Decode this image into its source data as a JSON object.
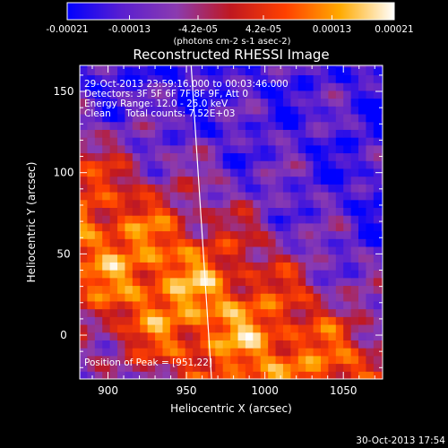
{
  "chart_data": {
    "type": "heatmap",
    "title": "Reconstructed RHESSI Image",
    "xlabel": "Heliocentric X (arcsec)",
    "ylabel": "Heliocentric Y (arcsec)",
    "x_ticks": [
      900,
      950,
      1000,
      1050
    ],
    "y_ticks": [
      0,
      50,
      100,
      150
    ],
    "xlim": [
      882,
      1075
    ],
    "ylim": [
      -27,
      166
    ],
    "colorbar": {
      "ticks": [
        "-0.00021",
        "-0.00013",
        "-4.2e-05",
        "4.2e-05",
        "0.00013",
        "0.00021"
      ],
      "tick_values": [
        -0.00021,
        -0.00013,
        -4.2e-05,
        4.2e-05,
        0.00013,
        0.00021
      ],
      "range": [
        -0.00021,
        0.00021
      ],
      "unit_label": "(photons cm-2 s-1 asec-2)",
      "colormap": [
        "#0000ff",
        "#5a1fd0",
        "#8b3bb0",
        "#c01820",
        "#ff4000",
        "#ffaa00",
        "#ffffff"
      ]
    },
    "annotations": {
      "time": "29-Oct-2013 23:59:16.000 to 00:03:46.000",
      "detectors": "Detectors: 3F 5F 6F 7F 8F 9F, Att 0",
      "energy": "Energy Range: 12.0 - 25.0 keV",
      "clean": "Clean     Total counts: 7.52E+03",
      "peak": "Position of Peak = [951,22]"
    },
    "peak_position": [
      951,
      22
    ],
    "limb_line": [
      [
        953,
        166
      ],
      [
        966,
        -27
      ]
    ],
    "footer": "30-Oct-2013 17:54"
  }
}
